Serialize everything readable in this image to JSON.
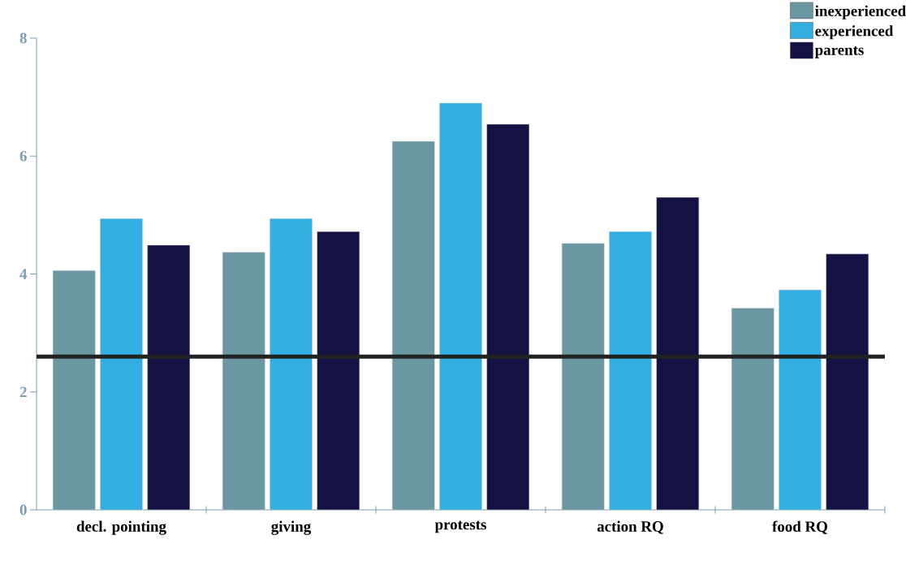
{
  "chart_data": {
    "type": "bar",
    "categories": [
      "decl. pointing",
      "giving",
      "protests",
      "action RQ",
      "food RQ"
    ],
    "series": [
      {
        "name": "inexperienced",
        "color": "#6b97a3",
        "values": [
          4.06,
          4.37,
          6.25,
          4.52,
          3.42
        ]
      },
      {
        "name": "experienced",
        "color": "#33aee0",
        "values": [
          4.94,
          4.94,
          6.9,
          4.72,
          3.73
        ]
      },
      {
        "name": "parents",
        "color": "#141242",
        "values": [
          4.49,
          4.72,
          6.54,
          5.3,
          4.34
        ]
      }
    ],
    "ylim": [
      0,
      8
    ],
    "yticks": [
      0,
      2,
      4,
      6,
      8
    ],
    "legend": "top right",
    "ref_lines": [
      {
        "axis": "y",
        "value": 2.6,
        "color": "#222222"
      }
    ]
  }
}
